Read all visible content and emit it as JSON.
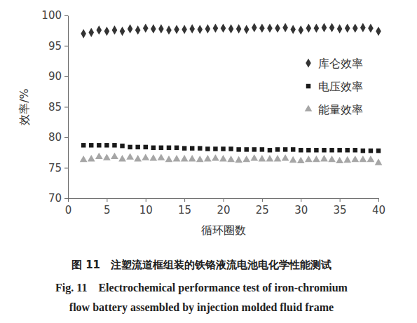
{
  "chart_data": {
    "type": "scatter",
    "title": "图 11　注塑流道框组装的铁铬液流电池电化学性能测试",
    "subtitle": [
      "Fig. 11　Electrochemical performance test of iron-chromium",
      "flow battery assembled by injection molded fluid frame"
    ],
    "x_label": "循环圈数",
    "y_label": "效率/%",
    "x": [
      2,
      3,
      4,
      5,
      6,
      7,
      8,
      9,
      10,
      11,
      12,
      13,
      14,
      15,
      16,
      17,
      18,
      19,
      20,
      21,
      22,
      23,
      24,
      25,
      26,
      27,
      28,
      29,
      30,
      31,
      32,
      33,
      34,
      35,
      36,
      37,
      38,
      39,
      40
    ],
    "series": [
      {
        "name": "库仑效率",
        "color": "#333333",
        "marker": "diamond",
        "values": [
          97.0,
          97.2,
          97.6,
          97.4,
          97.6,
          97.4,
          97.8,
          97.6,
          97.9,
          97.8,
          97.8,
          97.6,
          97.7,
          97.7,
          97.8,
          97.7,
          97.8,
          97.9,
          97.9,
          97.8,
          97.8,
          97.7,
          98.0,
          97.9,
          97.9,
          97.9,
          98.0,
          97.7,
          97.6,
          97.9,
          97.9,
          98.0,
          98.0,
          97.8,
          97.9,
          97.9,
          98.0,
          97.9,
          97.4
        ]
      },
      {
        "name": "电压效率",
        "color": "#1a1a1a",
        "marker": "square",
        "values": [
          78.7,
          78.7,
          78.7,
          78.7,
          78.7,
          78.6,
          78.4,
          78.4,
          78.4,
          78.3,
          78.3,
          78.3,
          78.3,
          78.2,
          78.2,
          78.2,
          78.1,
          78.1,
          78.1,
          78.1,
          78.0,
          78.0,
          78.0,
          78.0,
          77.9,
          78.0,
          78.0,
          78.0,
          77.9,
          77.9,
          77.9,
          77.9,
          77.9,
          77.9,
          77.9,
          77.9,
          77.8,
          77.8,
          77.8
        ]
      },
      {
        "name": "能量效率",
        "color": "#a6a6a6",
        "marker": "triangle",
        "values": [
          76.3,
          76.4,
          76.8,
          76.6,
          76.8,
          76.4,
          76.7,
          76.4,
          76.6,
          76.5,
          76.6,
          76.3,
          76.4,
          76.4,
          76.4,
          76.3,
          76.4,
          76.5,
          76.4,
          76.3,
          76.2,
          76.3,
          76.5,
          76.4,
          76.4,
          76.4,
          76.5,
          76.2,
          76.1,
          76.3,
          76.3,
          76.4,
          76.3,
          76.1,
          76.2,
          76.3,
          76.3,
          76.3,
          75.8
        ]
      }
    ],
    "xlim": [
      0,
      40
    ],
    "xticks": [
      0,
      5,
      10,
      15,
      20,
      25,
      30,
      35,
      40
    ],
    "ylim": [
      70,
      100
    ],
    "yticks": [
      70,
      75,
      80,
      85,
      90,
      95,
      100
    ],
    "grid": false,
    "legend": "upper right"
  }
}
